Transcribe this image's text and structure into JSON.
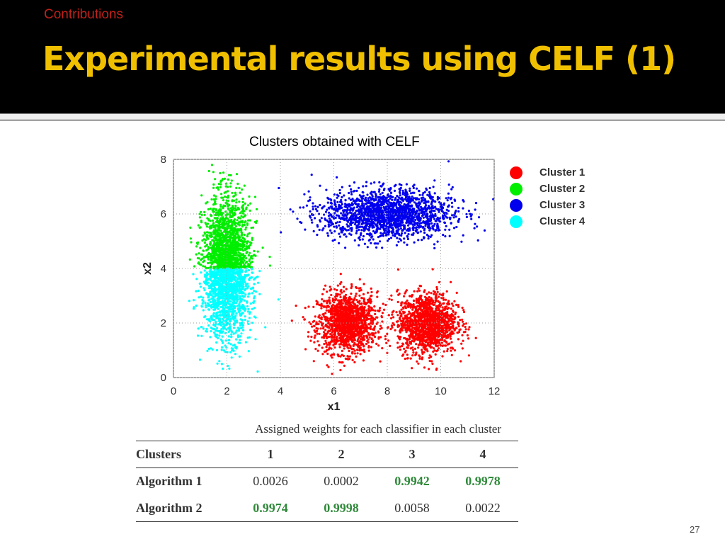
{
  "header": {
    "section": "Contributions",
    "title": "Experimental results using CELF (1)"
  },
  "chart": {
    "heading": "Clusters obtained with CELF"
  },
  "chart_data": {
    "type": "scatter",
    "xlabel": "x1",
    "ylabel": "x2",
    "xlim": [
      0,
      12
    ],
    "ylim": [
      0,
      8
    ],
    "xticks": [
      0,
      2,
      4,
      6,
      8,
      10,
      12
    ],
    "yticks": [
      0,
      2,
      4,
      6,
      8
    ],
    "grid": "dotted",
    "legend_position": "right",
    "series": [
      {
        "name": "Cluster 1",
        "color": "#ff0000",
        "centers": [
          [
            6.5,
            2.0
          ],
          [
            9.5,
            2.0
          ]
        ]
      },
      {
        "name": "Cluster 2",
        "color": "#00ee00",
        "centers": [
          [
            2.0,
            5.2
          ]
        ]
      },
      {
        "name": "Cluster 3",
        "color": "#0000ee",
        "centers": [
          [
            8.0,
            6.0
          ]
        ]
      },
      {
        "name": "Cluster 4",
        "color": "#00ffff",
        "centers": [
          [
            2.0,
            2.8
          ]
        ]
      }
    ]
  },
  "table": {
    "caption": "Assigned weights for each classifier in each cluster",
    "header": [
      "Clusters",
      "1",
      "2",
      "3",
      "4"
    ],
    "rows": [
      {
        "label": "Algorithm 1",
        "cells": [
          "0.0026",
          "0.0002",
          "0.9942",
          "0.9978"
        ]
      },
      {
        "label": "Algorithm 2",
        "cells": [
          "0.9974",
          "0.9998",
          "0.0058",
          "0.0022"
        ]
      }
    ],
    "highlight_color": "#2f8a3a"
  },
  "footer": {
    "page_number": "27"
  }
}
